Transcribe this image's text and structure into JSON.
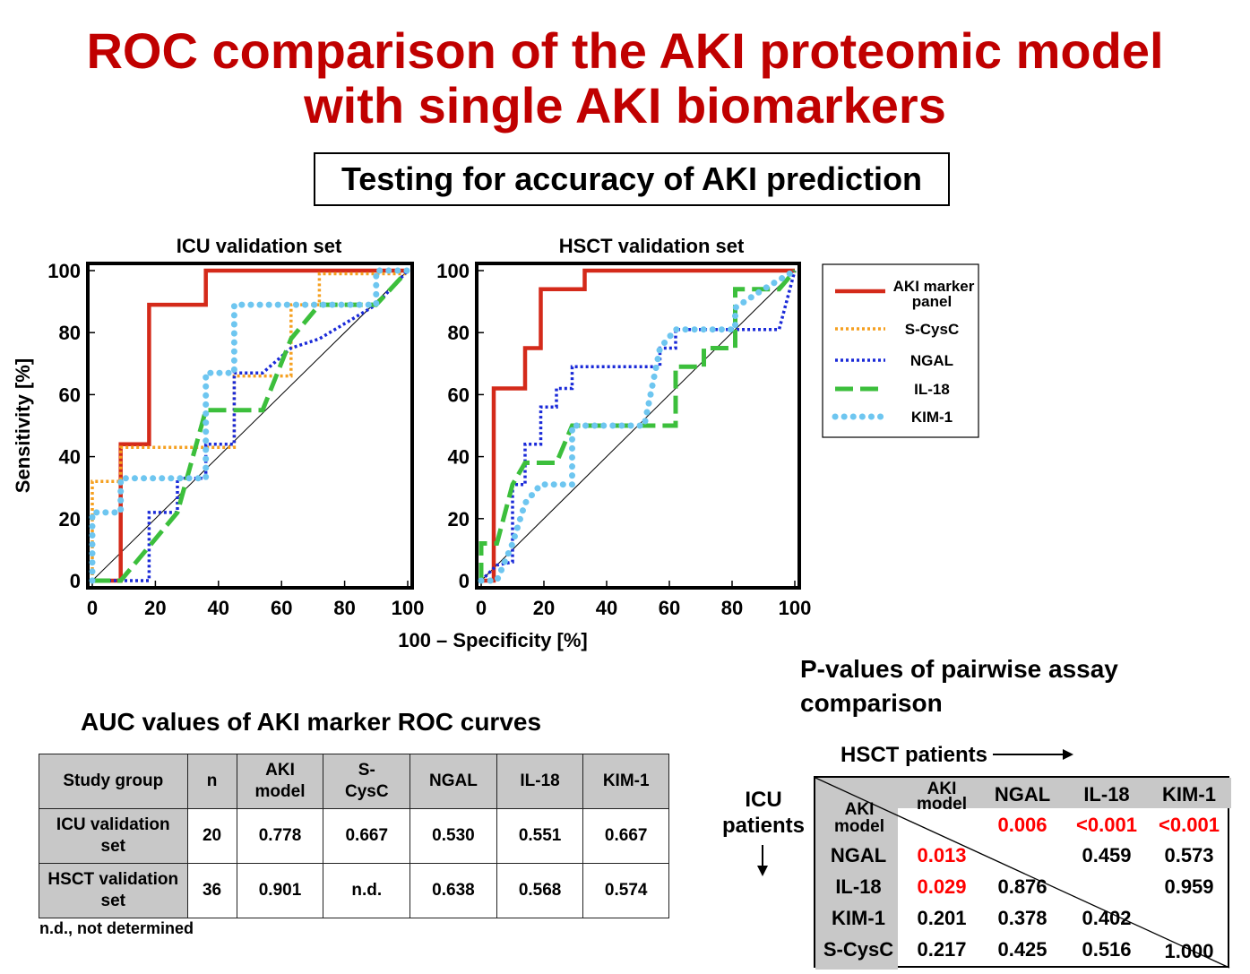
{
  "title_line1": "ROC comparison of the AKI proteomic model",
  "title_line2": "with single AKI biomarkers",
  "subtitle": "Testing for accuracy of AKI prediction",
  "chart_data": [
    {
      "type": "line",
      "title": "ICU validation set",
      "xlabel": "100 – Specificity [%]",
      "ylabel": "Sensitivity [%]",
      "xlim": [
        0,
        100
      ],
      "ylim": [
        0,
        100
      ],
      "xticks": [
        0,
        20,
        40,
        60,
        80,
        100
      ],
      "yticks": [
        0,
        20,
        40,
        60,
        80,
        100
      ],
      "reference_diagonal": true,
      "series": [
        {
          "name": "AKI marker panel",
          "color": "#d42a1a",
          "style": "solid",
          "points": [
            [
              0,
              0
            ],
            [
              9,
              0
            ],
            [
              9,
              44
            ],
            [
              18,
              44
            ],
            [
              18,
              89
            ],
            [
              36,
              89
            ],
            [
              36,
              100
            ],
            [
              100,
              100
            ]
          ]
        },
        {
          "name": "S-CysC",
          "color": "#f5a020",
          "style": "dotted",
          "points": [
            [
              0,
              0
            ],
            [
              0,
              32
            ],
            [
              9,
              32
            ],
            [
              9,
              43
            ],
            [
              45,
              43
            ],
            [
              45,
              66
            ],
            [
              63,
              66
            ],
            [
              63,
              89
            ],
            [
              72,
              89
            ],
            [
              72,
              99
            ],
            [
              100,
              99
            ],
            [
              100,
              100
            ]
          ]
        },
        {
          "name": "NGAL",
          "color": "#1a2ad8",
          "style": "dotted",
          "points": [
            [
              0,
              0
            ],
            [
              18,
              0
            ],
            [
              18,
              22
            ],
            [
              27,
              22
            ],
            [
              27,
              33
            ],
            [
              36,
              33
            ],
            [
              36,
              44
            ],
            [
              45,
              44
            ],
            [
              45,
              67
            ],
            [
              54,
              67
            ],
            [
              63,
              75
            ],
            [
              72,
              78
            ],
            [
              90,
              89
            ],
            [
              100,
              100
            ]
          ]
        },
        {
          "name": "IL-18",
          "color": "#3cbf3c",
          "style": "dashed",
          "points": [
            [
              0,
              0
            ],
            [
              9,
              0
            ],
            [
              18,
              11
            ],
            [
              27,
              22
            ],
            [
              36,
              55
            ],
            [
              54,
              55
            ],
            [
              63,
              78
            ],
            [
              72,
              89
            ],
            [
              90,
              89
            ],
            [
              100,
              100
            ]
          ]
        },
        {
          "name": "KIM-1",
          "color": "#6ec6f0",
          "style": "round-dots",
          "points": [
            [
              0,
              0
            ],
            [
              0,
              22
            ],
            [
              9,
              22
            ],
            [
              9,
              33
            ],
            [
              36,
              33
            ],
            [
              36,
              67
            ],
            [
              45,
              67
            ],
            [
              45,
              89
            ],
            [
              90,
              89
            ],
            [
              90,
              100
            ],
            [
              100,
              100
            ]
          ]
        }
      ]
    },
    {
      "type": "line",
      "title": "HSCT validation set",
      "xlabel": "100 – Specificity [%]",
      "ylabel": "Sensitivity [%]",
      "xlim": [
        0,
        100
      ],
      "ylim": [
        0,
        100
      ],
      "xticks": [
        0,
        20,
        40,
        60,
        80,
        100
      ],
      "yticks": [
        0,
        20,
        40,
        60,
        80,
        100
      ],
      "reference_diagonal": true,
      "series": [
        {
          "name": "AKI marker panel",
          "color": "#d42a1a",
          "style": "solid",
          "points": [
            [
              0,
              0
            ],
            [
              4,
              0
            ],
            [
              4,
              62
            ],
            [
              14,
              62
            ],
            [
              14,
              75
            ],
            [
              19,
              75
            ],
            [
              19,
              94
            ],
            [
              33,
              94
            ],
            [
              33,
              100
            ],
            [
              100,
              100
            ]
          ]
        },
        {
          "name": "S-CysC",
          "color": "#f5a020",
          "style": "dotted",
          "points": []
        },
        {
          "name": "NGAL",
          "color": "#1a2ad8",
          "style": "dotted",
          "points": [
            [
              0,
              0
            ],
            [
              5,
              5
            ],
            [
              10,
              6
            ],
            [
              10,
              31
            ],
            [
              14,
              31
            ],
            [
              14,
              44
            ],
            [
              19,
              44
            ],
            [
              19,
              56
            ],
            [
              24,
              56
            ],
            [
              24,
              62
            ],
            [
              29,
              62
            ],
            [
              29,
              69
            ],
            [
              57,
              69
            ],
            [
              57,
              75
            ],
            [
              62,
              75
            ],
            [
              62,
              81
            ],
            [
              95,
              81
            ],
            [
              100,
              100
            ]
          ]
        },
        {
          "name": "IL-18",
          "color": "#3cbf3c",
          "style": "dashed",
          "points": [
            [
              0,
              0
            ],
            [
              0,
              12
            ],
            [
              5,
              12
            ],
            [
              10,
              31
            ],
            [
              14,
              38
            ],
            [
              24,
              38
            ],
            [
              29,
              50
            ],
            [
              62,
              50
            ],
            [
              62,
              69
            ],
            [
              71,
              69
            ],
            [
              71,
              75
            ],
            [
              81,
              75
            ],
            [
              81,
              94
            ],
            [
              95,
              94
            ],
            [
              100,
              100
            ]
          ]
        },
        {
          "name": "KIM-1",
          "color": "#6ec6f0",
          "style": "round-dots",
          "points": [
            [
              0,
              0
            ],
            [
              5,
              0
            ],
            [
              10,
              12
            ],
            [
              14,
              25
            ],
            [
              19,
              31
            ],
            [
              29,
              31
            ],
            [
              29,
              50
            ],
            [
              52,
              50
            ],
            [
              57,
              75
            ],
            [
              62,
              81
            ],
            [
              81,
              81
            ],
            [
              81,
              88
            ],
            [
              90,
              94
            ],
            [
              100,
              100
            ]
          ]
        }
      ]
    }
  ],
  "legend": [
    {
      "label": "AKI marker panel",
      "color": "#d42a1a",
      "style": "solid"
    },
    {
      "label": "S-CysC",
      "color": "#f5a020",
      "style": "dotted"
    },
    {
      "label": "NGAL",
      "color": "#1a2ad8",
      "style": "dotted"
    },
    {
      "label": "IL-18",
      "color": "#3cbf3c",
      "style": "dashed"
    },
    {
      "label": "KIM-1",
      "color": "#6ec6f0",
      "style": "round-dots"
    }
  ],
  "auc": {
    "title": "AUC values of AKI marker ROC curves",
    "headers": [
      "Study group",
      "n",
      "AKI model",
      "S-CysC",
      "NGAL",
      "IL-18",
      "KIM-1"
    ],
    "rows": [
      [
        "ICU validation set",
        "20",
        "0.778",
        "0.667",
        "0.530",
        "0.551",
        "0.667"
      ],
      [
        "HSCT validation set",
        "36",
        "0.901",
        "n.d.",
        "0.638",
        "0.568",
        "0.574"
      ]
    ],
    "note": "n.d., not determined"
  },
  "pvalues": {
    "title": "P-values of pairwise assay comparison",
    "hsct_label": "HSCT patients",
    "icu_label": "ICU patients",
    "col_headers": [
      "AKI model",
      "NGAL",
      "IL-18",
      "KIM-1"
    ],
    "row_headers": [
      "AKI model",
      "NGAL",
      "IL-18",
      "KIM-1",
      "S-CysC"
    ],
    "upper": {
      "aki_ngal": "0.006",
      "aki_il18": "<0.001",
      "aki_kim1": "<0.001",
      "ngal_il18": "0.459",
      "ngal_kim1": "0.573",
      "il18_kim1": "0.959"
    },
    "lower": {
      "ngal_aki": "0.013",
      "il18_aki": "0.029",
      "il18_ngal": "0.876",
      "kim1_aki": "0.201",
      "kim1_ngal": "0.378",
      "kim1_il18": "0.402",
      "scysc_aki": "0.217",
      "scysc_ngal": "0.425",
      "scysc_il18": "0.516",
      "scysc_kim1": "1.000"
    },
    "significant_color": "#ff0000"
  }
}
